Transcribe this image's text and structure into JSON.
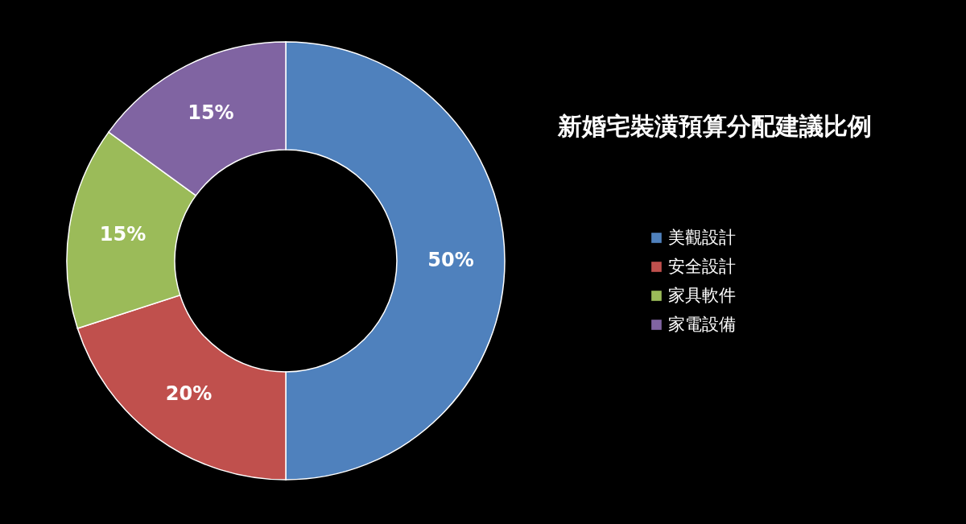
{
  "chart_data": {
    "type": "donut",
    "title": "新婚宅裝潢預算分配建議比例",
    "categories": [
      "美觀設計",
      "安全設計",
      "家具軟件",
      "家電設備"
    ],
    "values": [
      50,
      20,
      15,
      15
    ],
    "colors": [
      "#4f81bd",
      "#c0504d",
      "#9bbb59",
      "#8064a2"
    ],
    "value_labels": [
      "50%",
      "20%",
      "15%",
      "15%"
    ],
    "legend": "right"
  }
}
